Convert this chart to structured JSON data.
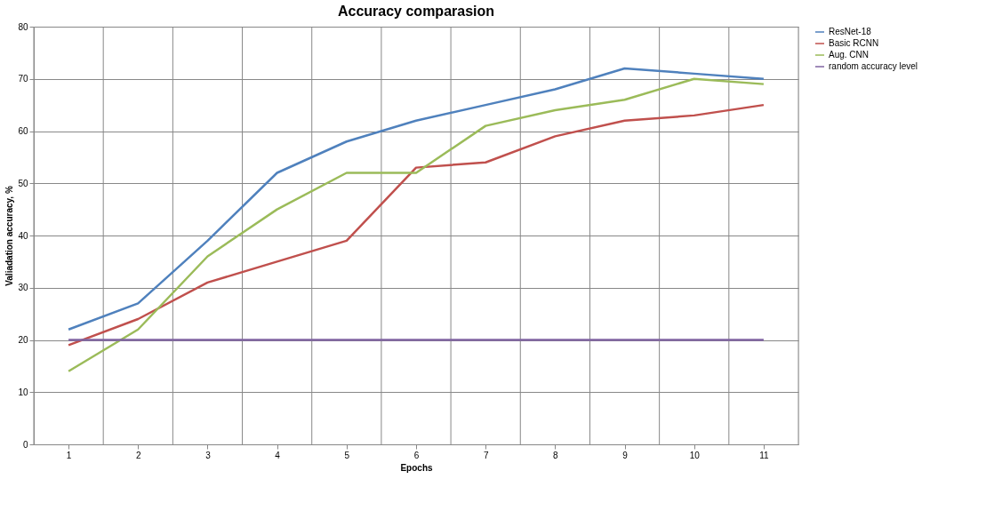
{
  "chart_data": {
    "type": "line",
    "title": "Accuracy comparasion",
    "xlabel": "Epochs",
    "ylabel": "Valiadation accuracy, %",
    "categories": [
      "1",
      "2",
      "3",
      "4",
      "5",
      "6",
      "7",
      "8",
      "9",
      "10",
      "11"
    ],
    "series": [
      {
        "name": "ResNet-18",
        "color": "#4f81bd",
        "values": [
          22,
          27,
          39,
          52,
          58,
          62,
          65,
          68,
          72,
          71,
          70
        ]
      },
      {
        "name": "Basic RCNN",
        "color": "#c0504d",
        "values": [
          19,
          24,
          31,
          35,
          39,
          53,
          54,
          59,
          62,
          63,
          65
        ]
      },
      {
        "name": "Aug. CNN",
        "color": "#9bbb59",
        "values": [
          14,
          22,
          36,
          45,
          52,
          52,
          61,
          64,
          66,
          70,
          69
        ]
      },
      {
        "name": "random accuracy level",
        "color": "#8064a2",
        "values": [
          20,
          20,
          20,
          20,
          20,
          20,
          20,
          20,
          20,
          20,
          20
        ]
      }
    ],
    "ylim": [
      0,
      80
    ],
    "yticks": [
      0,
      10,
      20,
      30,
      40,
      50,
      60,
      70,
      80
    ],
    "grid": true,
    "legend": "right",
    "marker": "none",
    "line_style": "solid"
  }
}
